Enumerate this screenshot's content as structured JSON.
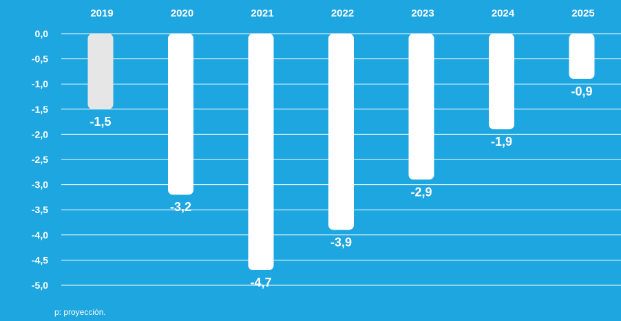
{
  "chart_data": {
    "type": "bar",
    "categories": [
      "2019",
      "2020",
      "2021",
      "2022",
      "2023",
      "2024",
      "2025"
    ],
    "values": [
      -1.5,
      -3.2,
      -4.7,
      -3.9,
      -2.9,
      -1.9,
      -0.9
    ],
    "value_labels": [
      "-1,5",
      "-3,2",
      "-4,7",
      "-3,9",
      "-2,9",
      "-1,9",
      "-0,9"
    ],
    "yticks": [
      0,
      -0.5,
      -1,
      -1.5,
      -2,
      -2.5,
      -3,
      -3.5,
      -4,
      -4.5,
      -5
    ],
    "ytick_labels": [
      "0,0",
      "-0,5",
      "-1,0",
      "-1,5",
      "-2,0",
      "-2,5",
      "-3,0",
      "-3,5",
      "-4,0",
      "-4,5",
      "-5,0"
    ],
    "ylim": [
      -5,
      0
    ],
    "category_axis_position": "top",
    "grid": true,
    "title": "",
    "xlabel": "",
    "ylabel": ""
  },
  "footnote": "p: proyección.",
  "colors": {
    "background": "#1ea6e0",
    "bar_default": "#ffffff",
    "bar_highlight": "#e6e6e6",
    "grid": "#ffffff",
    "text": "#ffffff"
  },
  "highlight_index": 0
}
